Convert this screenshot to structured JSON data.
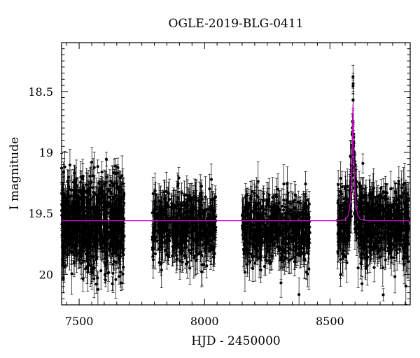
{
  "chart_data": {
    "type": "scatter",
    "title": "OGLE-2019-BLG-0411",
    "xlabel": "HJD - 2450000",
    "ylabel": "I magnitude",
    "xlim": [
      7430,
      8820
    ],
    "ylim": [
      20.25,
      18.1
    ],
    "y_inverted": true,
    "grid": false,
    "x_ticks": [
      7500,
      8000,
      8500
    ],
    "x_tick_labels": [
      "7500",
      "8000",
      "8500"
    ],
    "y_ticks": [
      18.5,
      19,
      19.5,
      20
    ],
    "y_tick_labels": [
      "18.5",
      "19",
      "19.5",
      "20"
    ],
    "colors": {
      "data": "#000000",
      "model": "#cc00cc"
    },
    "model": {
      "type": "paczynski",
      "baseline_mag": 19.56,
      "peak_mag": 18.6,
      "t0": 8592,
      "tE_days": 12
    },
    "seasons": [
      {
        "start": 7430,
        "end": 7680,
        "n_points": 900,
        "mean_mag": 19.58,
        "scatter": 0.18
      },
      {
        "start": 7790,
        "end": 8045,
        "n_points": 550,
        "mean_mag": 19.6,
        "scatter": 0.13
      },
      {
        "start": 8150,
        "end": 8420,
        "n_points": 600,
        "mean_mag": 19.63,
        "scatter": 0.14
      },
      {
        "start": 8530,
        "end": 8815,
        "n_points": 750,
        "mean_mag": 19.6,
        "scatter": 0.15
      }
    ]
  }
}
